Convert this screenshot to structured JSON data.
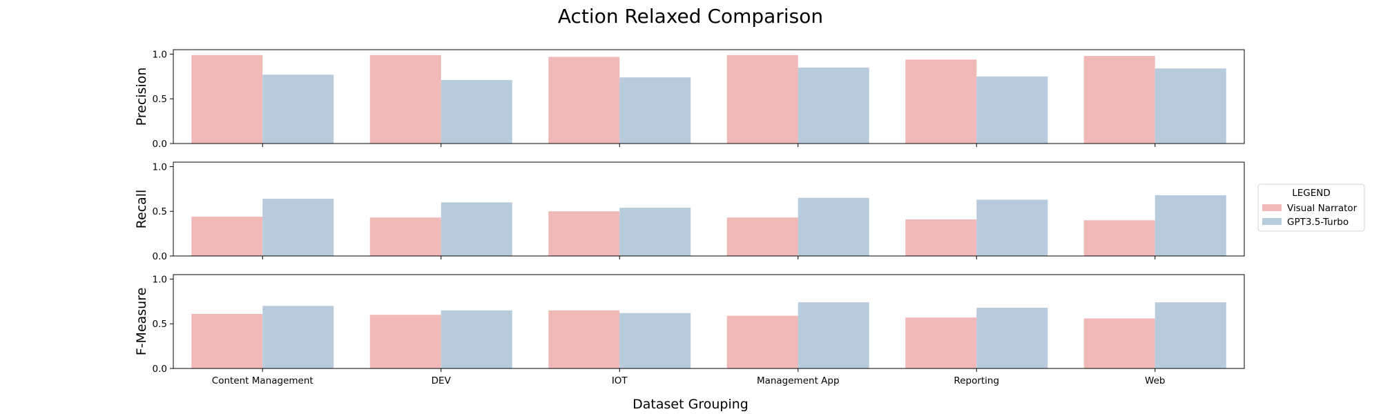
{
  "chart_data": {
    "type": "bar",
    "title": "Action Relaxed Comparison",
    "xlabel": "Dataset Grouping",
    "categories": [
      "Content Management",
      "DEV",
      "IOT",
      "Management App",
      "Reporting",
      "Web"
    ],
    "legend": {
      "title": "LEGEND",
      "placement": "right",
      "entries": [
        "Visual Narrator",
        "GPT3.5-Turbo"
      ]
    },
    "series_colors": [
      "#f0b9b8",
      "#b7cbdd"
    ],
    "yticks": [
      "0.0",
      "0.5",
      "1.0"
    ],
    "ylim": [
      0,
      1.05
    ],
    "panels": [
      {
        "ylabel": "Precision",
        "series": [
          {
            "name": "Visual Narrator",
            "values": [
              0.99,
              0.99,
              0.97,
              0.99,
              0.94,
              0.98
            ]
          },
          {
            "name": "GPT3.5-Turbo",
            "values": [
              0.77,
              0.71,
              0.74,
              0.85,
              0.75,
              0.84
            ]
          }
        ]
      },
      {
        "ylabel": "Recall",
        "series": [
          {
            "name": "Visual Narrator",
            "values": [
              0.44,
              0.43,
              0.5,
              0.43,
              0.41,
              0.4
            ]
          },
          {
            "name": "GPT3.5-Turbo",
            "values": [
              0.64,
              0.6,
              0.54,
              0.65,
              0.63,
              0.68
            ]
          }
        ]
      },
      {
        "ylabel": "F-Measure",
        "series": [
          {
            "name": "Visual Narrator",
            "values": [
              0.61,
              0.6,
              0.65,
              0.59,
              0.57,
              0.56
            ]
          },
          {
            "name": "GPT3.5-Turbo",
            "values": [
              0.7,
              0.65,
              0.62,
              0.74,
              0.68,
              0.74
            ]
          }
        ]
      }
    ]
  }
}
